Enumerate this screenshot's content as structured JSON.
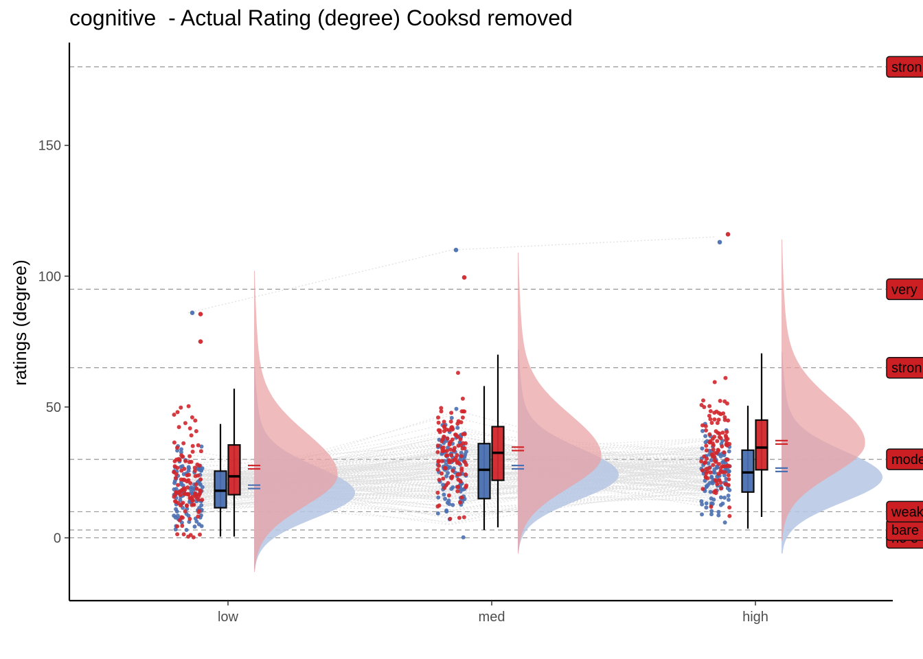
{
  "chart_data": {
    "type": "raincloud",
    "title": "cognitive  - Actual Rating (degree) Cooksd removed",
    "xlabel": "",
    "ylabel": "ratings (degree)",
    "ylim": [
      -24,
      190
    ],
    "yticks": [
      0,
      50,
      100,
      150
    ],
    "categories": [
      "low",
      "med",
      "high"
    ],
    "colors": {
      "blue": "#4a6fb0",
      "red": "#d0272c",
      "blue_fill": "#b5c5e3",
      "red_fill": "#eaa1a3",
      "ref_box": "#cc1f24"
    },
    "reference_lines": [
      {
        "value": 0,
        "label": "no e"
      },
      {
        "value": 3,
        "label": "bare"
      },
      {
        "value": 10,
        "label": "weak"
      },
      {
        "value": 30,
        "label": "mode"
      },
      {
        "value": 65,
        "label": "stron"
      },
      {
        "value": 95,
        "label": "very"
      },
      {
        "value": 180,
        "label": "stron"
      }
    ],
    "series": [
      {
        "color": "blue",
        "boxplots": [
          {
            "category": "low",
            "q1": 11.5,
            "median": 18,
            "q3": 25.5,
            "whisker_low": 0.5,
            "whisker_high": 43.5
          },
          {
            "category": "med",
            "q1": 15,
            "median": 26,
            "q3": 36,
            "whisker_low": 3,
            "whisker_high": 58
          },
          {
            "category": "high",
            "q1": 17.5,
            "median": 25,
            "q3": 33.5,
            "whisker_low": 3.5,
            "whisker_high": 50.5
          }
        ],
        "means": [
          19.5,
          27,
          26
        ],
        "density_peaks": [
          17,
          24,
          23
        ]
      },
      {
        "color": "red",
        "boxplots": [
          {
            "category": "low",
            "q1": 16.5,
            "median": 23.5,
            "q3": 35.5,
            "whisker_low": 0.5,
            "whisker_high": 57
          },
          {
            "category": "med",
            "q1": 22,
            "median": 32.5,
            "q3": 42.5,
            "whisker_low": 4,
            "whisker_high": 70
          },
          {
            "category": "high",
            "q1": 26,
            "median": 34.5,
            "q3": 45,
            "whisker_low": 8,
            "whisker_high": 70.5
          }
        ],
        "means": [
          27,
          34,
          36.5
        ],
        "density_peaks": [
          24,
          31,
          36
        ]
      }
    ],
    "outliers": [
      {
        "category": "low",
        "series": "blue",
        "value": 86
      },
      {
        "category": "low",
        "series": "red",
        "value": 85.5
      },
      {
        "category": "low",
        "series": "red",
        "value": 75
      },
      {
        "category": "med",
        "series": "blue",
        "value": 110
      },
      {
        "category": "med",
        "series": "red",
        "value": 99.5
      },
      {
        "category": "high",
        "series": "red",
        "value": 116
      },
      {
        "category": "high",
        "series": "blue",
        "value": 113
      }
    ]
  }
}
